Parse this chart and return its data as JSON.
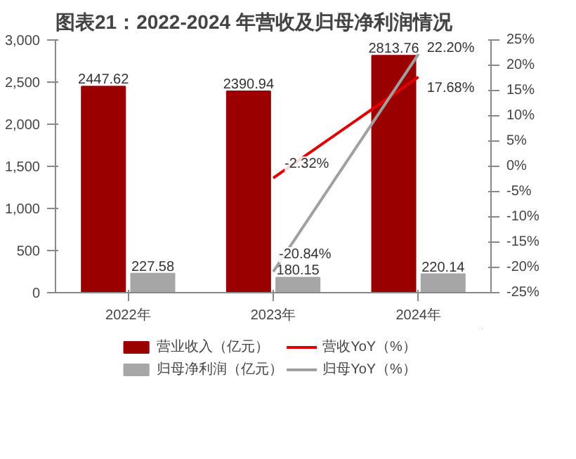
{
  "chart_data": {
    "type": "bar",
    "title": "图表21：2022-2024 年营收及归母净利润情况",
    "categories": [
      "2022年",
      "2023年",
      "2024年"
    ],
    "series": [
      {
        "name": "营业收入（亿元）",
        "color": "#9b0000",
        "values": [
          2447.62,
          2390.94,
          2813.76
        ],
        "value_labels": [
          "2447.62",
          "2390.94",
          "2813.76"
        ]
      },
      {
        "name": "归母净利润（亿元）",
        "color": "#a6a6a6",
        "values": [
          227.58,
          180.15,
          220.14
        ],
        "value_labels": [
          "227.58",
          "180.15",
          "220.14"
        ]
      },
      {
        "name": "营收YoY（%）",
        "type": "line",
        "axis": "y2",
        "color": "#e00000",
        "values": [
          null,
          -2.32,
          17.68
        ],
        "value_labels": [
          null,
          "-2.32%",
          "17.68%"
        ]
      },
      {
        "name": "归母YoY（%）",
        "type": "line",
        "axis": "y2",
        "color": "#a0a0a0",
        "values": [
          null,
          -20.84,
          22.2
        ],
        "value_labels": [
          null,
          "-20.84%",
          "22.20%"
        ]
      }
    ],
    "ylim": [
      0,
      3000
    ],
    "yticks": [
      0,
      500,
      {
        "value": 1000,
        "label": "1,000"
      },
      {
        "value": 1500,
        "label": "1,500"
      },
      {
        "value": 2000,
        "label": "2,000"
      },
      {
        "value": 2500,
        "label": "2,500"
      },
      {
        "value": 3000,
        "label": "3,000"
      }
    ],
    "y2lim": [
      -25,
      25
    ],
    "y2ticks": [
      {
        "value": -25,
        "label": "-25%"
      },
      {
        "value": -20,
        "label": "-20%"
      },
      {
        "value": -15,
        "label": "-15%"
      },
      {
        "value": -10,
        "label": "-10%"
      },
      {
        "value": -5,
        "label": "-5%"
      },
      {
        "value": 0,
        "label": "0%"
      },
      {
        "value": 5,
        "label": "5%"
      },
      {
        "value": 10,
        "label": "10%"
      },
      {
        "value": 15,
        "label": "15%"
      },
      {
        "value": 20,
        "label": "20%"
      },
      {
        "value": 25,
        "label": "25%"
      }
    ],
    "legend": "bottom",
    "grid": false,
    "marker": "none",
    "line_style": "solid"
  }
}
